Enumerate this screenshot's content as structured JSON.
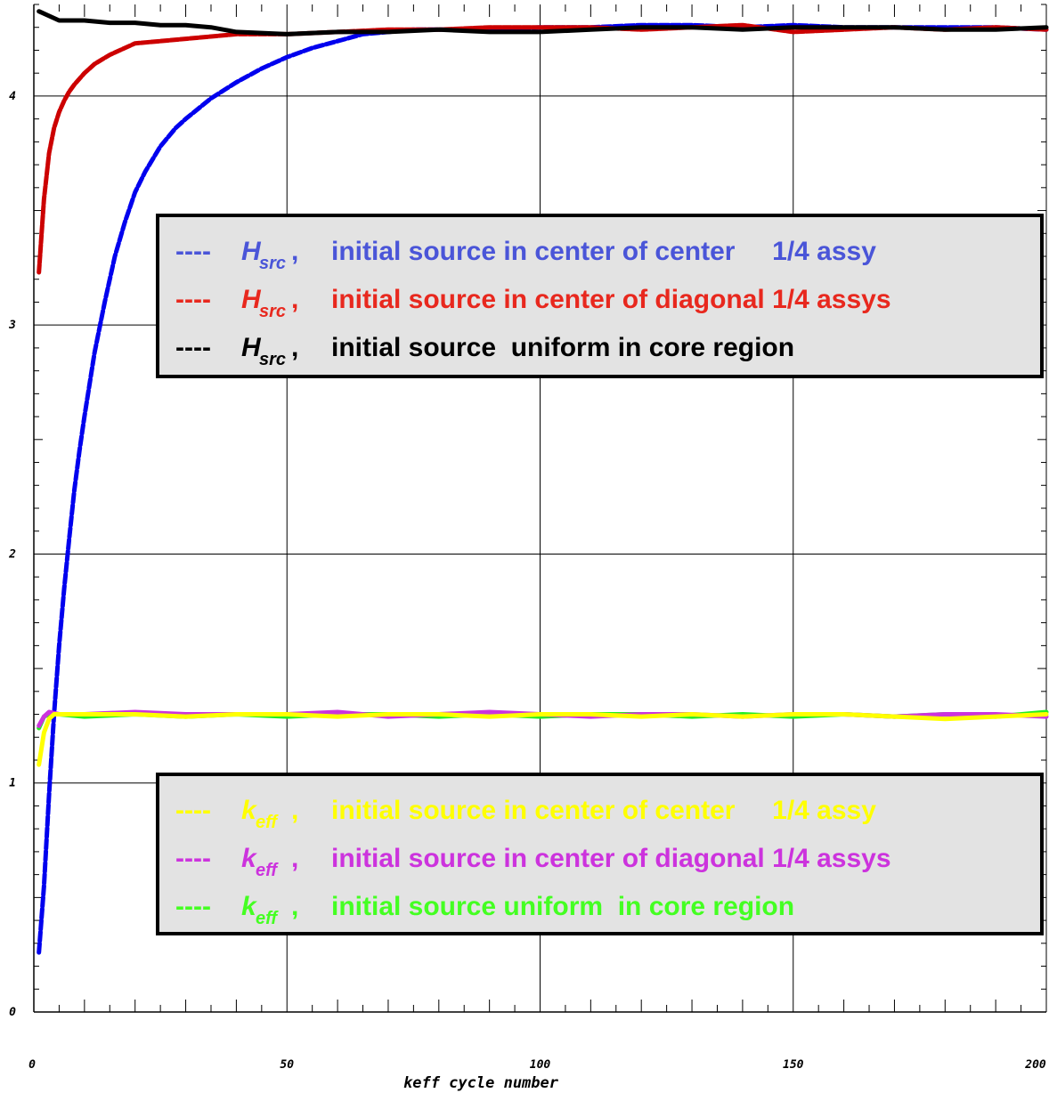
{
  "chart_data": {
    "type": "line",
    "title": "",
    "xlabel": "keff cycle number",
    "ylabel": "",
    "xlim": [
      0,
      200
    ],
    "ylim": [
      0,
      4.4
    ],
    "x_ticks": [
      0,
      50,
      100,
      150,
      200
    ],
    "y_ticks": [
      0,
      1,
      2,
      3,
      4
    ],
    "grid": true,
    "legends": [
      {
        "placement": "upper-center",
        "entries": [
          {
            "dash": "----",
            "sym": "H",
            "sub": "src",
            "text": "initial source in center of center     1/4 assy",
            "color": "#4a55d8"
          },
          {
            "dash": "----",
            "sym": "H",
            "sub": "src",
            "text": "initial source in center of diagonal 1/4 assys",
            "color": "#e8281e"
          },
          {
            "dash": "----",
            "sym": "H",
            "sub": "src",
            "text": "initial source  uniform in core region",
            "color": "#000000"
          }
        ]
      },
      {
        "placement": "lower-center",
        "entries": [
          {
            "dash": "----",
            "sym": "k",
            "sub": "eff",
            "text": "initial source in center of center     1/4 assy",
            "color": "#ffff00"
          },
          {
            "dash": "----",
            "sym": "k",
            "sub": "eff",
            "text": "initial source in center of diagonal 1/4 assys",
            "color": "#cc33dd"
          },
          {
            "dash": "----",
            "sym": "k",
            "sub": "eff",
            "text": "initial source uniform  in core region",
            "color": "#44ff22"
          }
        ]
      }
    ],
    "series": [
      {
        "color": "#0000ee",
        "x": [
          1,
          2,
          3,
          4,
          5,
          6,
          7,
          8,
          9,
          10,
          12,
          14,
          16,
          18,
          20,
          22,
          25,
          28,
          30,
          35,
          40,
          45,
          50,
          55,
          60,
          65,
          70,
          75,
          80,
          90,
          100,
          110,
          120,
          130,
          140,
          150,
          160,
          170,
          180,
          190,
          200
        ],
        "y": [
          0.26,
          0.55,
          0.95,
          1.3,
          1.6,
          1.85,
          2.07,
          2.28,
          2.45,
          2.6,
          2.88,
          3.1,
          3.3,
          3.45,
          3.58,
          3.67,
          3.78,
          3.86,
          3.9,
          3.99,
          4.06,
          4.12,
          4.17,
          4.21,
          4.24,
          4.27,
          4.28,
          4.29,
          4.29,
          4.29,
          4.3,
          4.3,
          4.31,
          4.31,
          4.3,
          4.31,
          4.3,
          4.3,
          4.3,
          4.3,
          4.29
        ]
      },
      {
        "color": "#cc0000",
        "x": [
          1,
          2,
          3,
          4,
          5,
          6,
          7,
          8,
          10,
          12,
          15,
          18,
          20,
          25,
          30,
          35,
          40,
          45,
          50,
          60,
          70,
          80,
          90,
          100,
          110,
          120,
          130,
          140,
          150,
          160,
          170,
          180,
          190,
          200
        ],
        "y": [
          3.23,
          3.55,
          3.75,
          3.86,
          3.93,
          3.98,
          4.02,
          4.05,
          4.1,
          4.14,
          4.18,
          4.21,
          4.23,
          4.24,
          4.25,
          4.26,
          4.27,
          4.27,
          4.27,
          4.28,
          4.29,
          4.29,
          4.3,
          4.3,
          4.3,
          4.29,
          4.3,
          4.31,
          4.28,
          4.29,
          4.3,
          4.29,
          4.3,
          4.29
        ]
      },
      {
        "color": "#000000",
        "x": [
          1,
          3,
          5,
          8,
          10,
          15,
          20,
          25,
          30,
          35,
          40,
          50,
          60,
          70,
          80,
          90,
          100,
          110,
          120,
          130,
          140,
          150,
          160,
          170,
          180,
          190,
          200
        ],
        "y": [
          4.37,
          4.35,
          4.33,
          4.33,
          4.33,
          4.32,
          4.32,
          4.31,
          4.31,
          4.3,
          4.28,
          4.27,
          4.28,
          4.28,
          4.29,
          4.28,
          4.28,
          4.29,
          4.3,
          4.3,
          4.29,
          4.3,
          4.3,
          4.3,
          4.29,
          4.29,
          4.3
        ]
      },
      {
        "color": "#22ee22",
        "x": [
          1,
          2,
          3,
          5,
          10,
          20,
          30,
          40,
          50,
          60,
          70,
          80,
          90,
          100,
          110,
          120,
          130,
          140,
          150,
          160,
          170,
          180,
          190,
          200
        ],
        "y": [
          1.24,
          1.29,
          1.3,
          1.3,
          1.29,
          1.3,
          1.29,
          1.3,
          1.29,
          1.3,
          1.3,
          1.29,
          1.3,
          1.29,
          1.3,
          1.3,
          1.29,
          1.3,
          1.29,
          1.3,
          1.29,
          1.3,
          1.29,
          1.31
        ]
      },
      {
        "color": "#cc33dd",
        "x": [
          1,
          2,
          3,
          5,
          10,
          20,
          30,
          40,
          50,
          60,
          70,
          80,
          90,
          100,
          110,
          120,
          130,
          140,
          150,
          160,
          170,
          180,
          190,
          200
        ],
        "y": [
          1.25,
          1.29,
          1.31,
          1.3,
          1.3,
          1.31,
          1.3,
          1.3,
          1.3,
          1.31,
          1.29,
          1.3,
          1.31,
          1.3,
          1.29,
          1.3,
          1.3,
          1.29,
          1.3,
          1.3,
          1.29,
          1.3,
          1.3,
          1.29
        ]
      },
      {
        "color": "#ffff00",
        "x": [
          1,
          2,
          3,
          4,
          6,
          10,
          20,
          30,
          40,
          50,
          60,
          70,
          80,
          90,
          100,
          110,
          120,
          130,
          140,
          150,
          160,
          170,
          180,
          190,
          200
        ],
        "y": [
          1.08,
          1.22,
          1.28,
          1.3,
          1.3,
          1.3,
          1.3,
          1.29,
          1.3,
          1.3,
          1.29,
          1.3,
          1.3,
          1.29,
          1.3,
          1.3,
          1.29,
          1.3,
          1.29,
          1.3,
          1.3,
          1.29,
          1.28,
          1.29,
          1.3
        ]
      }
    ]
  }
}
